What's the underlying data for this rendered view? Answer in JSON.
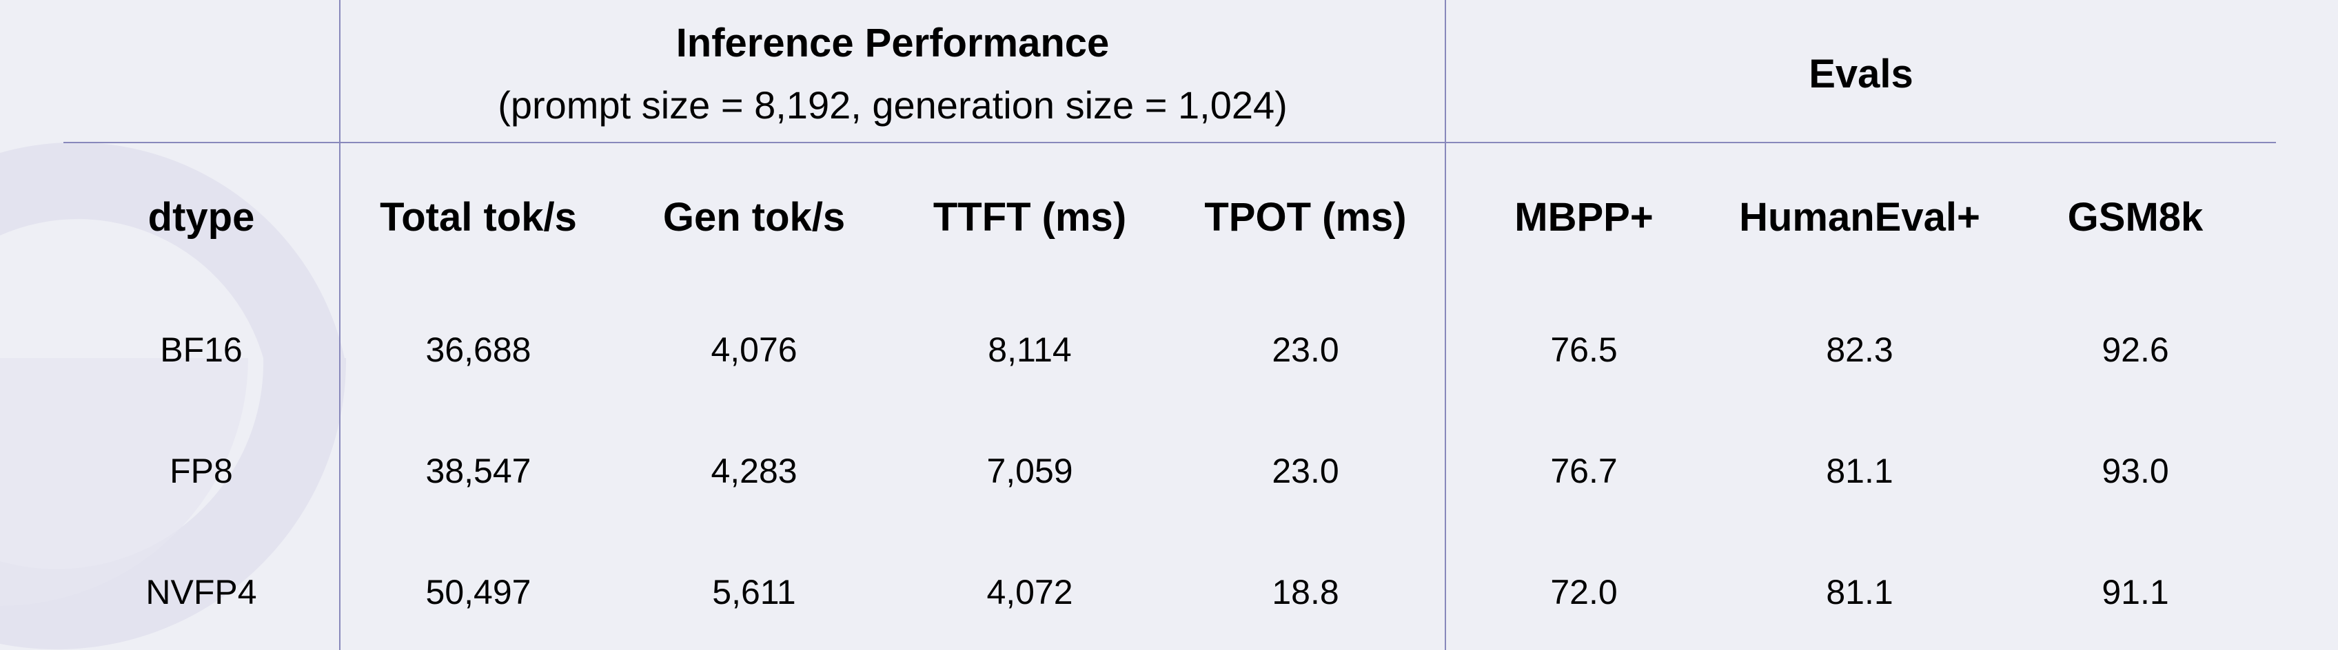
{
  "chart_data": {
    "type": "table",
    "groups": [
      {
        "title": "Inference Performance",
        "subtitle": "(prompt size = 8,192, generation size = 1,024)"
      },
      {
        "title": "Evals",
        "subtitle": ""
      }
    ],
    "columns": [
      "dtype",
      "Total tok/s",
      "Gen tok/s",
      "TTFT (ms)",
      "TPOT (ms)",
      "MBPP+",
      "HumanEval+",
      "GSM8k"
    ],
    "rows": [
      [
        "BF16",
        "36,688",
        "4,076",
        "8,114",
        "23.0",
        "76.5",
        "82.3",
        "92.6"
      ],
      [
        "FP8",
        "38,547",
        "4,283",
        "7,059",
        "23.0",
        "76.7",
        "81.1",
        "93.0"
      ],
      [
        "NVFP4",
        "50,497",
        "5,611",
        "4,072",
        "18.8",
        "72.0",
        "81.1",
        "91.1"
      ]
    ]
  },
  "colors": {
    "background": "#eeeff5",
    "grid_lines": "#8888bb",
    "watermark": "#e2e2ee"
  },
  "watermark": {
    "icon": "logo-watermark-icon"
  }
}
